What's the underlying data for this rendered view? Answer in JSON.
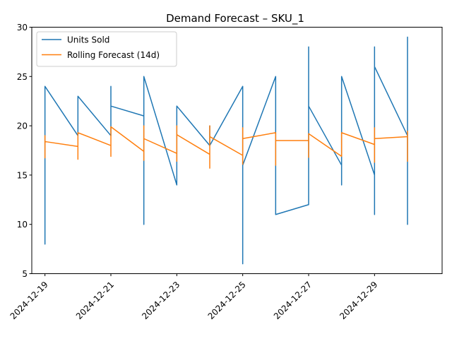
{
  "chart_data": {
    "type": "line",
    "title": "Demand Forecast – SKU_1",
    "xlabel": "",
    "ylabel": "",
    "ylim": [
      5,
      30
    ],
    "xlim": [
      "2024-12-18",
      "2024-12-31"
    ],
    "yticks": [
      5,
      10,
      15,
      20,
      25,
      30
    ],
    "xticks": [
      "2024-12-19",
      "2024-12-21",
      "2024-12-23",
      "2024-12-25",
      "2024-12-27",
      "2024-12-29"
    ],
    "legend_position": "upper-left",
    "grid": false,
    "series": [
      {
        "name": "Units Sold",
        "color": "#1f77b4",
        "points": [
          [
            "2024-12-19",
            13
          ],
          [
            "2024-12-19",
            22
          ],
          [
            "2024-12-19",
            8
          ],
          [
            "2024-12-19",
            24
          ],
          [
            "2024-12-20",
            19
          ],
          [
            "2024-12-20",
            23
          ],
          [
            "2024-12-21",
            19
          ],
          [
            "2024-12-21",
            24
          ],
          [
            "2024-12-21",
            22
          ],
          [
            "2024-12-22",
            21
          ],
          [
            "2024-12-22",
            10
          ],
          [
            "2024-12-22",
            25
          ],
          [
            "2024-12-23",
            14
          ],
          [
            "2024-12-23",
            22
          ],
          [
            "2024-12-24",
            18
          ],
          [
            "2024-12-24",
            20
          ],
          [
            "2024-12-24",
            18
          ],
          [
            "2024-12-25",
            24
          ],
          [
            "2024-12-25",
            6
          ],
          [
            "2024-12-25",
            16
          ],
          [
            "2024-12-26",
            25
          ],
          [
            "2024-12-26",
            11
          ],
          [
            "2024-12-27",
            12
          ],
          [
            "2024-12-27",
            28
          ],
          [
            "2024-12-27",
            22
          ],
          [
            "2024-12-28",
            16
          ],
          [
            "2024-12-28",
            14
          ],
          [
            "2024-12-28",
            25
          ],
          [
            "2024-12-29",
            15
          ],
          [
            "2024-12-29",
            11
          ],
          [
            "2024-12-29",
            28
          ],
          [
            "2024-12-29",
            26
          ],
          [
            "2024-12-30",
            19
          ],
          [
            "2024-12-30",
            10
          ],
          [
            "2024-12-30",
            29
          ],
          [
            "2024-12-30",
            19
          ]
        ]
      },
      {
        "name": "Rolling Forecast (14d)",
        "color": "#ff7f0e",
        "points": [
          [
            "2024-12-19",
            16.7
          ],
          [
            "2024-12-19",
            19.0
          ],
          [
            "2024-12-19",
            18.4
          ],
          [
            "2024-12-20",
            17.9
          ],
          [
            "2024-12-20",
            16.6
          ],
          [
            "2024-12-20",
            19.3
          ],
          [
            "2024-12-21",
            18.0
          ],
          [
            "2024-12-21",
            16.9
          ],
          [
            "2024-12-21",
            19.9
          ],
          [
            "2024-12-22",
            17.4
          ],
          [
            "2024-12-22",
            16.5
          ],
          [
            "2024-12-22",
            20.0
          ],
          [
            "2024-12-22",
            18.7
          ],
          [
            "2024-12-23",
            17.2
          ],
          [
            "2024-12-23",
            16.4
          ],
          [
            "2024-12-23",
            20.0
          ],
          [
            "2024-12-23",
            19.1
          ],
          [
            "2024-12-24",
            17.1
          ],
          [
            "2024-12-24",
            15.7
          ],
          [
            "2024-12-24",
            20.0
          ],
          [
            "2024-12-24",
            18.9
          ],
          [
            "2024-12-25",
            17.0
          ],
          [
            "2024-12-25",
            16.1
          ],
          [
            "2024-12-25",
            19.8
          ],
          [
            "2024-12-25",
            18.7
          ],
          [
            "2024-12-26",
            19.3
          ],
          [
            "2024-12-26",
            16.0
          ],
          [
            "2024-12-26",
            18.5
          ],
          [
            "2024-12-27",
            18.5
          ],
          [
            "2024-12-27",
            16.8
          ],
          [
            "2024-12-27",
            19.2
          ],
          [
            "2024-12-28",
            16.9
          ],
          [
            "2024-12-28",
            17.4
          ],
          [
            "2024-12-28",
            19.3
          ],
          [
            "2024-12-29",
            18.1
          ],
          [
            "2024-12-29",
            16.3
          ],
          [
            "2024-12-29",
            19.8
          ],
          [
            "2024-12-29",
            18.7
          ],
          [
            "2024-12-30",
            18.9
          ],
          [
            "2024-12-30",
            16.4
          ],
          [
            "2024-12-30",
            19.5
          ]
        ]
      }
    ]
  }
}
